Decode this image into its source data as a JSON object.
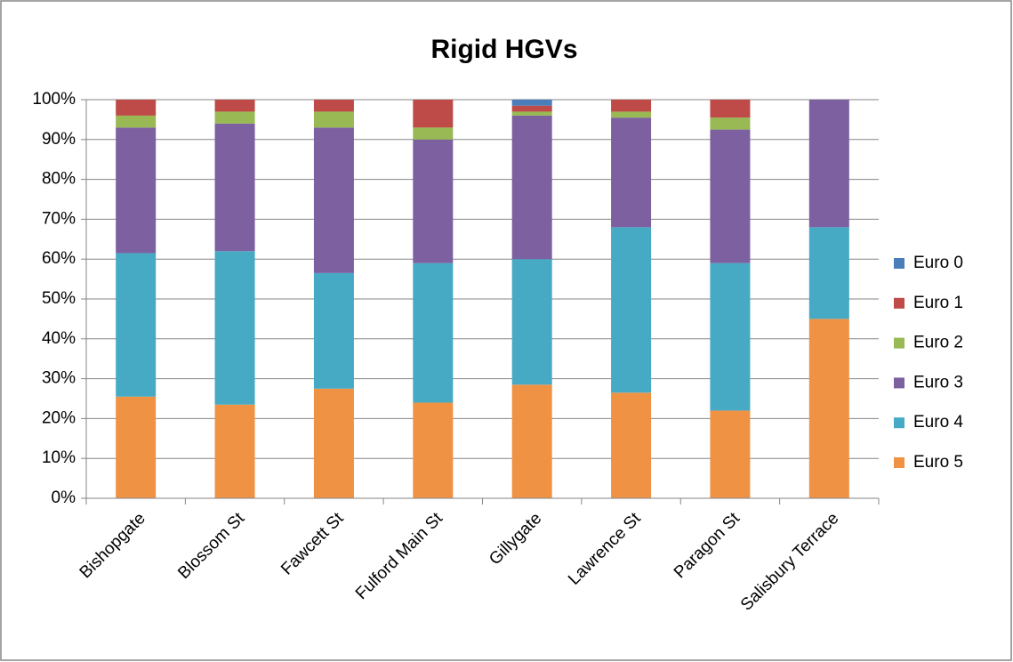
{
  "chart_data": {
    "type": "stacked_bar",
    "title": "Rigid HGVs",
    "categories": [
      "Bishopgate",
      "Blossom St",
      "Fawcett St",
      "Fulford Main St",
      "Gillygate",
      "Lawrence St",
      "Paragon St",
      "Salisbury Terrace"
    ],
    "series": [
      {
        "name": "Euro 0",
        "color": "#4a7ebb",
        "values": [
          0,
          0,
          0,
          0,
          1.5,
          0,
          0,
          0
        ]
      },
      {
        "name": "Euro 1",
        "color": "#be4b48",
        "values": [
          4,
          3,
          3,
          7,
          1.5,
          3,
          4.5,
          0
        ]
      },
      {
        "name": "Euro 2",
        "color": "#98b954",
        "values": [
          3,
          3,
          4,
          3,
          1,
          1.5,
          3,
          0
        ]
      },
      {
        "name": "Euro 3",
        "color": "#7d60a0",
        "values": [
          31.5,
          32,
          36.5,
          31,
          36,
          27.5,
          33.5,
          32
        ]
      },
      {
        "name": "Euro 4",
        "color": "#46aac5",
        "values": [
          36,
          38.5,
          29,
          35,
          31.5,
          41.5,
          37,
          23
        ]
      },
      {
        "name": "Euro 5",
        "color": "#f09244",
        "values": [
          25.5,
          23.5,
          27.5,
          24,
          28.5,
          26.5,
          22,
          45
        ]
      }
    ],
    "ylim": [
      0,
      100
    ],
    "yticks": [
      {
        "value": 0,
        "label": "0%"
      },
      {
        "value": 10,
        "label": "10%"
      },
      {
        "value": 20,
        "label": "20%"
      },
      {
        "value": 30,
        "label": "30%"
      },
      {
        "value": 40,
        "label": "40%"
      },
      {
        "value": 50,
        "label": "50%"
      },
      {
        "value": 60,
        "label": "60%"
      },
      {
        "value": 70,
        "label": "70%"
      },
      {
        "value": 80,
        "label": "80%"
      },
      {
        "value": 90,
        "label": "90%"
      },
      {
        "value": 100,
        "label": "100%"
      }
    ],
    "grid": true,
    "legend": "right"
  }
}
